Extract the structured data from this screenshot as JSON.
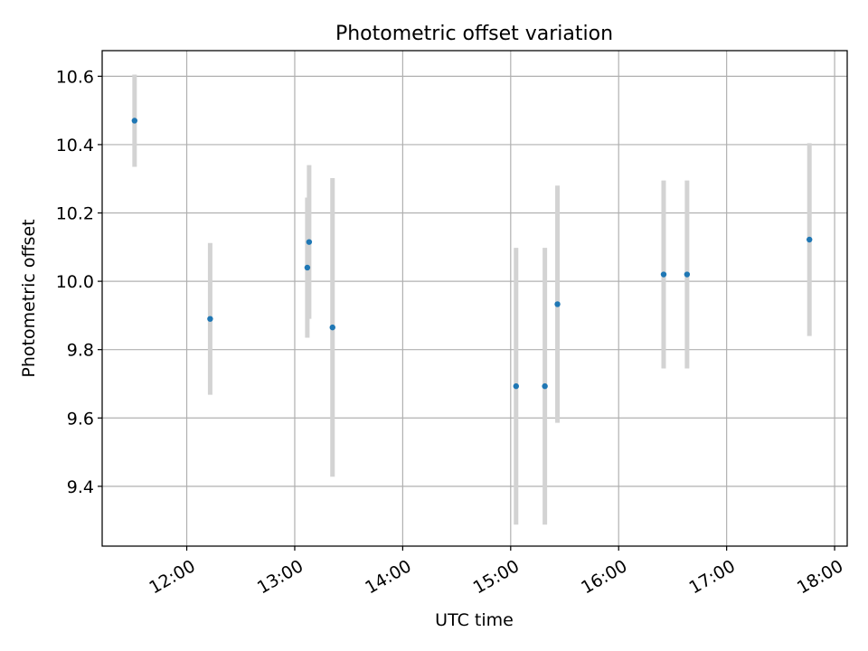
{
  "chart_data": {
    "type": "scatter",
    "title": "Photometric offset variation",
    "xlabel": "UTC time",
    "ylabel": "Photometric offset",
    "x_axis": {
      "kind": "time",
      "range": [
        "11:13",
        "18:07"
      ],
      "ticks": [
        "12:00",
        "13:00",
        "14:00",
        "15:00",
        "16:00",
        "17:00",
        "18:00"
      ],
      "tick_rotation_deg": 30
    },
    "ylim": [
      9.225,
      10.675
    ],
    "yticks": [
      "9.4",
      "9.6",
      "9.8",
      "10.0",
      "10.2",
      "10.4",
      "10.6"
    ],
    "grid": true,
    "points": [
      {
        "x": "11:31",
        "y": 10.47,
        "err": 0.135
      },
      {
        "x": "12:13",
        "y": 9.89,
        "err": 0.222
      },
      {
        "x": "13:07",
        "y": 10.04,
        "err": 0.205
      },
      {
        "x": "13:08",
        "y": 10.115,
        "err": 0.225
      },
      {
        "x": "13:21",
        "y": 9.865,
        "err": 0.437
      },
      {
        "x": "15:03",
        "y": 9.693,
        "err": 0.405
      },
      {
        "x": "15:19",
        "y": 9.693,
        "err": 0.405
      },
      {
        "x": "15:26",
        "y": 9.933,
        "err": 0.347
      },
      {
        "x": "16:25",
        "y": 10.02,
        "err": 0.275
      },
      {
        "x": "16:38",
        "y": 10.02,
        "err": 0.275
      },
      {
        "x": "17:46",
        "y": 10.122,
        "err": 0.282
      }
    ],
    "colors": {
      "marker": "#1f77b4",
      "errorbar": "#d3d3d3",
      "grid": "#b0b0b0",
      "axes": "#000000"
    }
  }
}
